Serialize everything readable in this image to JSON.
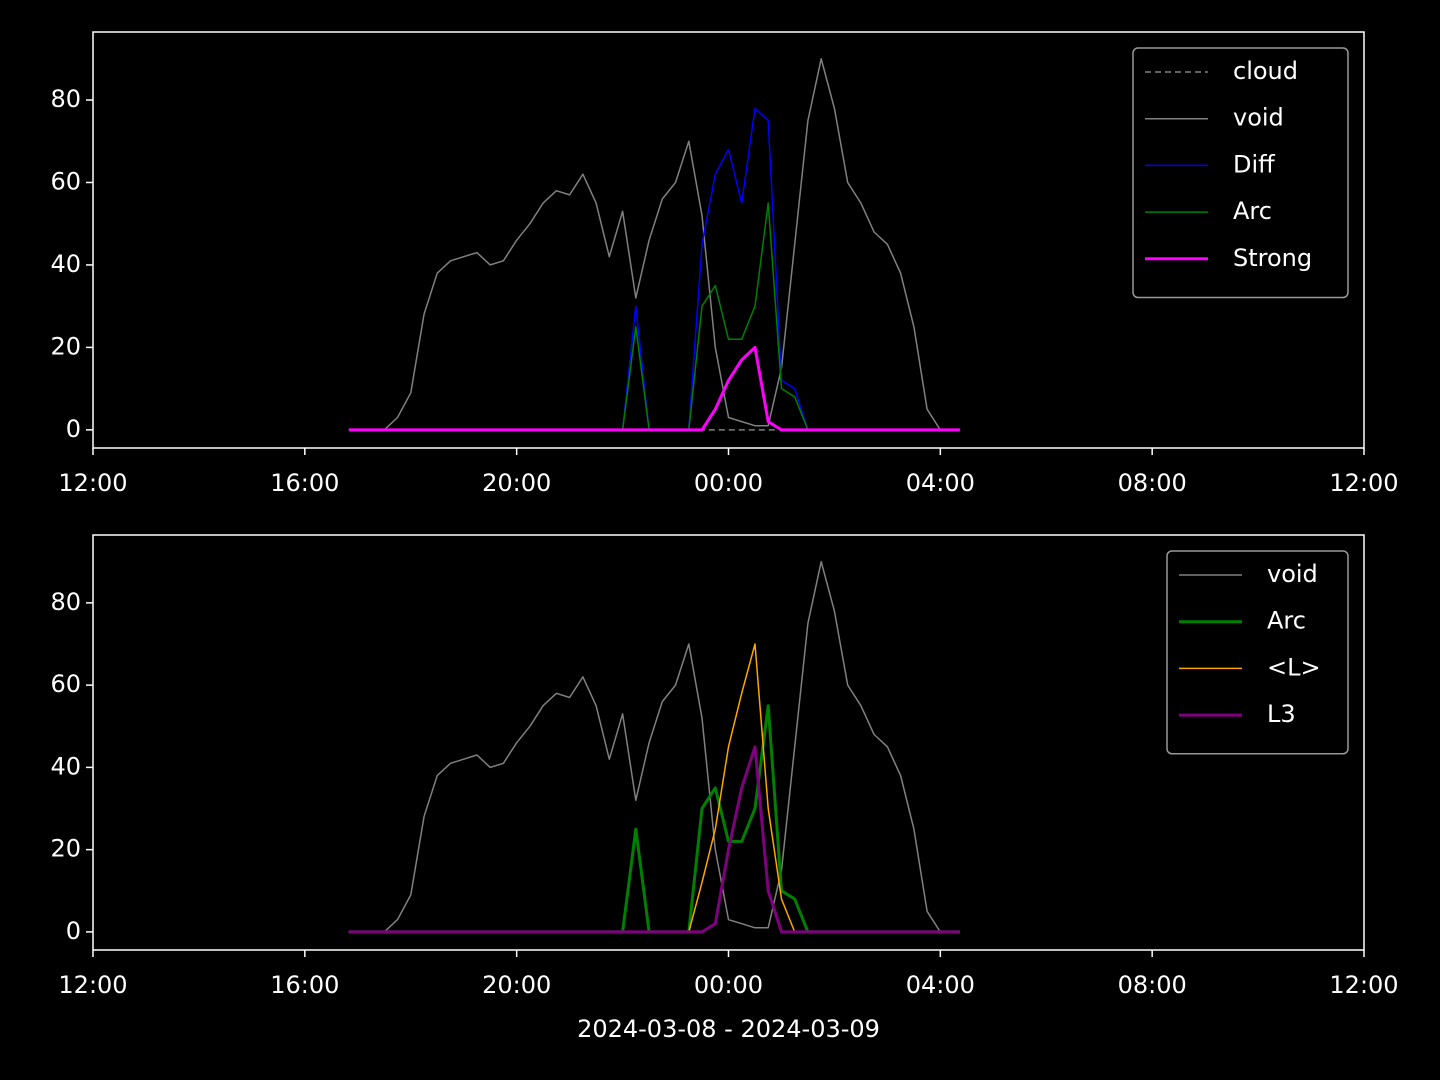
{
  "chart_data": [
    {
      "type": "line",
      "legend": "upper right",
      "x": [
        16.83,
        17,
        17.25,
        17.5,
        17.75,
        18,
        18.25,
        18.5,
        18.75,
        19,
        19.25,
        19.5,
        19.75,
        20,
        20.25,
        20.5,
        20.75,
        21,
        21.25,
        21.5,
        21.75,
        22,
        22.25,
        22.5,
        22.75,
        23,
        23.25,
        23.5,
        23.75,
        24,
        24.25,
        24.5,
        24.75,
        25,
        25.25,
        25.5,
        25.75,
        26,
        26.25,
        26.5,
        26.75,
        27,
        27.25,
        27.5,
        27.75,
        28,
        28.25,
        28.37
      ],
      "xlim": [
        12,
        36
      ],
      "xticks": [
        {
          "value": 12,
          "label": "12:00"
        },
        {
          "value": 16,
          "label": "16:00"
        },
        {
          "value": 20,
          "label": "20:00"
        },
        {
          "value": 24,
          "label": "00:00"
        },
        {
          "value": 28,
          "label": "04:00"
        },
        {
          "value": 32,
          "label": "08:00"
        },
        {
          "value": 36,
          "label": "12:00"
        }
      ],
      "ylim": [
        -4.4,
        96.5
      ],
      "yticks": [
        0,
        20,
        40,
        60,
        80
      ],
      "series": [
        {
          "name": "cloud",
          "color": "#808080",
          "linestyle": "dashed",
          "linewidth": 1.5,
          "values": [
            0,
            0,
            0,
            0,
            0,
            0,
            0,
            0,
            0,
            0,
            0,
            0,
            0,
            0,
            0,
            0,
            0,
            0,
            0,
            0,
            0,
            0,
            0,
            0,
            0,
            0,
            0,
            0,
            0,
            0,
            0,
            0,
            0,
            0,
            0,
            0,
            0,
            0,
            0,
            0,
            0,
            0,
            0,
            0,
            0,
            0,
            0,
            0
          ]
        },
        {
          "name": "void",
          "color": "#808080",
          "linestyle": "solid",
          "linewidth": 1.5,
          "values": [
            0,
            0,
            0,
            0,
            3,
            9,
            28,
            38,
            41,
            42,
            43,
            40,
            41,
            46,
            50,
            55,
            58,
            57,
            62,
            55,
            42,
            53,
            32,
            46,
            56,
            60,
            70,
            52,
            20,
            3,
            2,
            1,
            1,
            15,
            45,
            75,
            90,
            78,
            60,
            55,
            48,
            45,
            38,
            25,
            5,
            0,
            0,
            0
          ]
        },
        {
          "name": "Diff",
          "color": "#0000ff",
          "linestyle": "solid",
          "linewidth": 1.5,
          "values": [
            0,
            0,
            0,
            0,
            0,
            0,
            0,
            0,
            0,
            0,
            0,
            0,
            0,
            0,
            0,
            0,
            0,
            0,
            0,
            0,
            0,
            0,
            30,
            0,
            0,
            0,
            0,
            45,
            62,
            68,
            55,
            78,
            75,
            12,
            10,
            0,
            0,
            0,
            0,
            0,
            0,
            0,
            0,
            0,
            0,
            0,
            0,
            0
          ]
        },
        {
          "name": "Arc",
          "color": "#008000",
          "linestyle": "solid",
          "linewidth": 1.5,
          "values": [
            0,
            0,
            0,
            0,
            0,
            0,
            0,
            0,
            0,
            0,
            0,
            0,
            0,
            0,
            0,
            0,
            0,
            0,
            0,
            0,
            0,
            0,
            25,
            0,
            0,
            0,
            0,
            30,
            35,
            22,
            22,
            30,
            55,
            10,
            8,
            0,
            0,
            0,
            0,
            0,
            0,
            0,
            0,
            0,
            0,
            0,
            0,
            0
          ]
        },
        {
          "name": "Strong",
          "color": "#ff00ff",
          "linestyle": "solid",
          "linewidth": 3,
          "values": [
            0,
            0,
            0,
            0,
            0,
            0,
            0,
            0,
            0,
            0,
            0,
            0,
            0,
            0,
            0,
            0,
            0,
            0,
            0,
            0,
            0,
            0,
            0,
            0,
            0,
            0,
            0,
            0,
            5,
            12,
            17,
            20,
            2,
            0,
            0,
            0,
            0,
            0,
            0,
            0,
            0,
            0,
            0,
            0,
            0,
            0,
            0,
            0
          ]
        }
      ]
    },
    {
      "type": "line",
      "legend": "upper right",
      "xlabel": "2024-03-08 - 2024-03-09",
      "x": [
        16.83,
        17,
        17.25,
        17.5,
        17.75,
        18,
        18.25,
        18.5,
        18.75,
        19,
        19.25,
        19.5,
        19.75,
        20,
        20.25,
        20.5,
        20.75,
        21,
        21.25,
        21.5,
        21.75,
        22,
        22.25,
        22.5,
        22.75,
        23,
        23.25,
        23.5,
        23.75,
        24,
        24.25,
        24.5,
        24.75,
        25,
        25.25,
        25.5,
        25.75,
        26,
        26.25,
        26.5,
        26.75,
        27,
        27.25,
        27.5,
        27.75,
        28,
        28.25,
        28.37
      ],
      "xlim": [
        12,
        36
      ],
      "xticks": [
        {
          "value": 12,
          "label": "12:00"
        },
        {
          "value": 16,
          "label": "16:00"
        },
        {
          "value": 20,
          "label": "20:00"
        },
        {
          "value": 24,
          "label": "00:00"
        },
        {
          "value": 28,
          "label": "04:00"
        },
        {
          "value": 32,
          "label": "08:00"
        },
        {
          "value": 36,
          "label": "12:00"
        }
      ],
      "ylim": [
        -4.4,
        96.5
      ],
      "yticks": [
        0,
        20,
        40,
        60,
        80
      ],
      "series": [
        {
          "name": "void",
          "color": "#808080",
          "linestyle": "solid",
          "linewidth": 1.5,
          "values": [
            0,
            0,
            0,
            0,
            3,
            9,
            28,
            38,
            41,
            42,
            43,
            40,
            41,
            46,
            50,
            55,
            58,
            57,
            62,
            55,
            42,
            53,
            32,
            46,
            56,
            60,
            70,
            52,
            20,
            3,
            2,
            1,
            1,
            15,
            45,
            75,
            90,
            78,
            60,
            55,
            48,
            45,
            38,
            25,
            5,
            0,
            0,
            0
          ]
        },
        {
          "name": "Arc",
          "color": "#008000",
          "linestyle": "solid",
          "linewidth": 3,
          "values": [
            0,
            0,
            0,
            0,
            0,
            0,
            0,
            0,
            0,
            0,
            0,
            0,
            0,
            0,
            0,
            0,
            0,
            0,
            0,
            0,
            0,
            0,
            25,
            0,
            0,
            0,
            0,
            30,
            35,
            22,
            22,
            30,
            55,
            10,
            8,
            0,
            0,
            0,
            0,
            0,
            0,
            0,
            0,
            0,
            0,
            0,
            0,
            0
          ]
        },
        {
          "name": "<L>",
          "color": "#ffa500",
          "linestyle": "solid",
          "linewidth": 1.5,
          "values": [
            0,
            0,
            0,
            0,
            0,
            0,
            0,
            0,
            0,
            0,
            0,
            0,
            0,
            0,
            0,
            0,
            0,
            0,
            0,
            0,
            0,
            0,
            0,
            0,
            0,
            0,
            0,
            12,
            25,
            45,
            58,
            70,
            30,
            8,
            0,
            0,
            0,
            0,
            0,
            0,
            0,
            0,
            0,
            0,
            0,
            0,
            0,
            0
          ]
        },
        {
          "name": "L3",
          "color": "#800080",
          "linestyle": "solid",
          "linewidth": 3,
          "values": [
            0,
            0,
            0,
            0,
            0,
            0,
            0,
            0,
            0,
            0,
            0,
            0,
            0,
            0,
            0,
            0,
            0,
            0,
            0,
            0,
            0,
            0,
            0,
            0,
            0,
            0,
            0,
            0,
            2,
            20,
            35,
            45,
            10,
            0,
            0,
            0,
            0,
            0,
            0,
            0,
            0,
            0,
            0,
            0,
            0,
            0,
            0,
            0
          ]
        }
      ]
    }
  ]
}
